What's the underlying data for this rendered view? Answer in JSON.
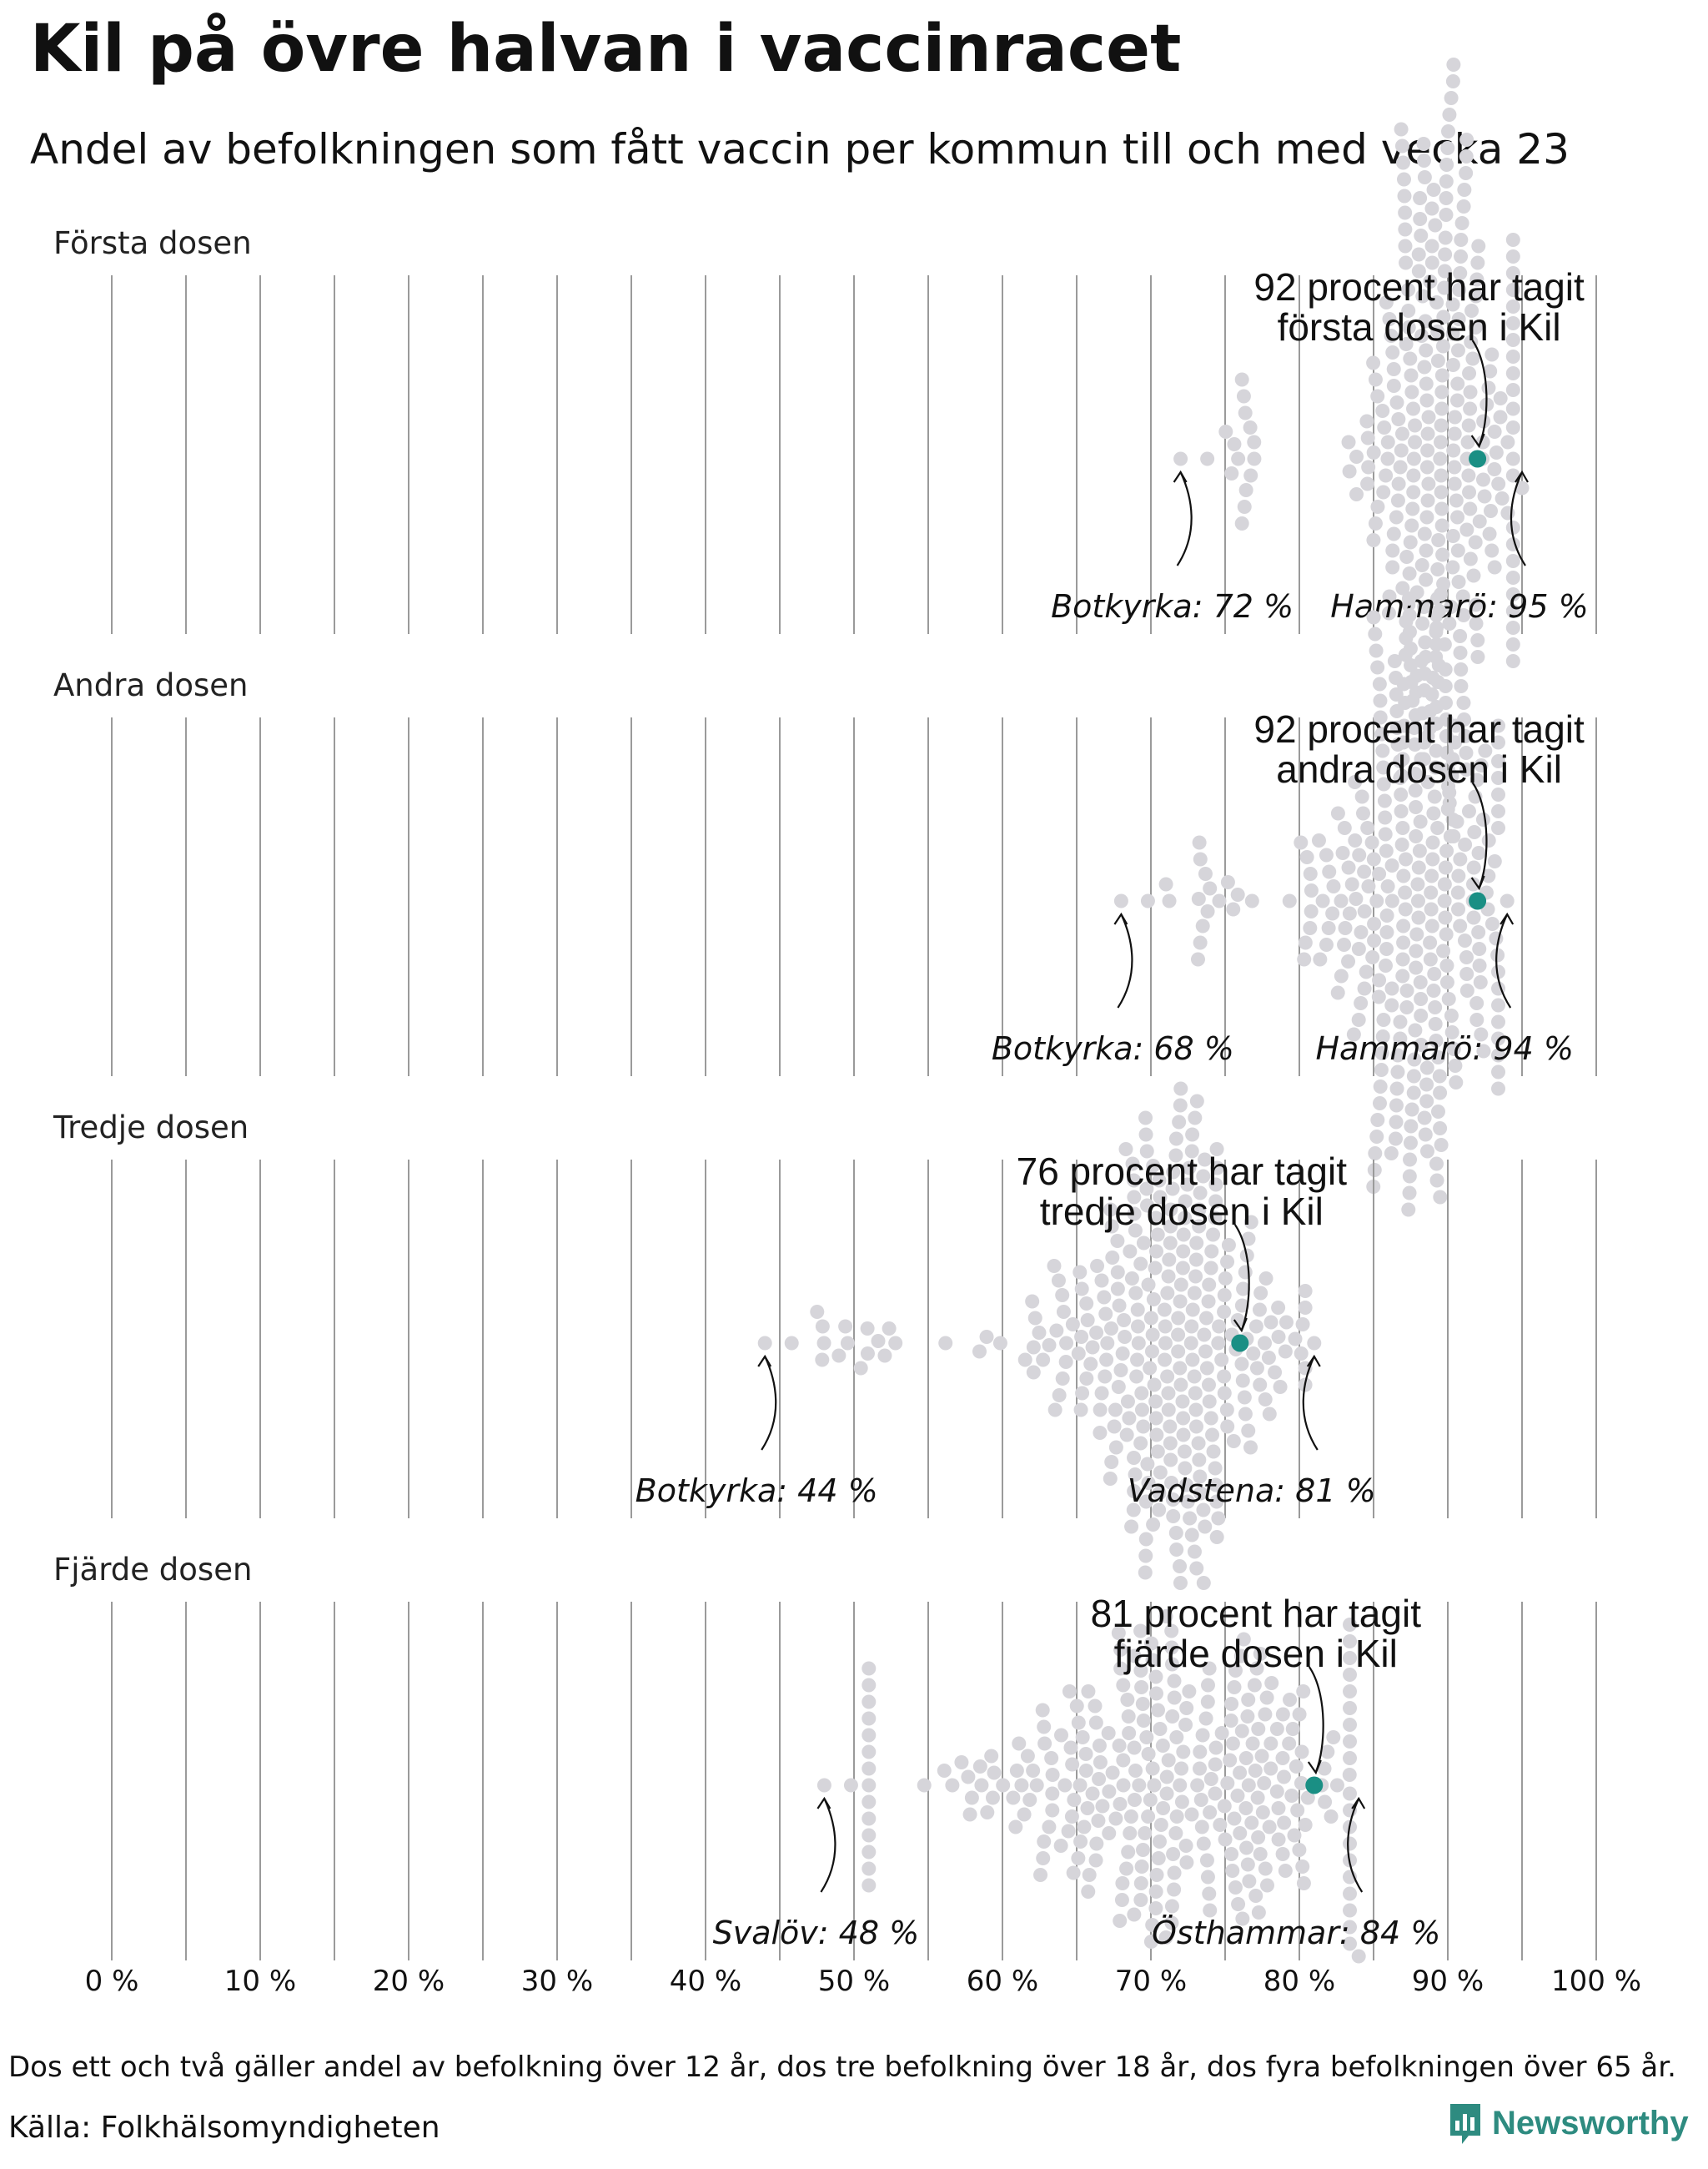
{
  "title": "Kil på övre halvan i vaccinracet",
  "subtitle": "Andel av befolkningen som fått vaccin per kommun till och med vecka 23",
  "footnote": "Dos ett och två gäller andel av befolkning över 12 år, dos tre befolkning över 18 år, dos fyra befolkningen över 65 år.",
  "source": "Källa: Folkhälsomyndigheten",
  "brand": "Newsworthy",
  "colors": {
    "municipality": "#d6d5da",
    "kil": "#1a8f84",
    "grid": "#9a9a9a"
  },
  "chart_data": {
    "type": "scatter",
    "subtype": "beeswarm",
    "xlim": [
      0,
      100
    ],
    "ticks": [
      "0 %",
      "10 %",
      "20 %",
      "30 %",
      "40 %",
      "50 %",
      "60 %",
      "70 %",
      "80 %",
      "90 %",
      "100 %"
    ],
    "grid": true,
    "unit": "%",
    "panels": [
      {
        "label": "Första dosen",
        "kil_value": 92,
        "kil_text": [
          "92 procent har tagit",
          "första dosen i Kil"
        ],
        "min": {
          "name": "Botkyrka",
          "value": 72,
          "label": "Botkyrka: 72 %"
        },
        "max": {
          "name": "Hammarö",
          "value": 95,
          "label": "Hammarö: 95 %"
        },
        "distribution": {
          "mode": 89.5,
          "spread": 3.0,
          "tail_from": 76,
          "range": [
            72,
            95
          ]
        }
      },
      {
        "label": "Andra dosen",
        "kil_value": 92,
        "kil_text": [
          "92 procent har tagit",
          "andra dosen i Kil"
        ],
        "min": {
          "name": "Botkyrka",
          "value": 68,
          "label": "Botkyrka: 68 %"
        },
        "max": {
          "name": "Hammarö",
          "value": 94,
          "label": "Hammarö: 94 %"
        },
        "distribution": {
          "mode": 88,
          "spread": 3.2,
          "tail_from": 75,
          "range": [
            68,
            94
          ]
        }
      },
      {
        "label": "Tredje dosen",
        "kil_value": 76,
        "kil_text": [
          "76 procent har tagit",
          "tredje dosen i Kil"
        ],
        "min": {
          "name": "Botkyrka",
          "value": 44,
          "label": "Botkyrka: 44 %"
        },
        "max": {
          "name": "Vadstena",
          "value": 81,
          "label": "Vadstena: 81 %"
        },
        "distribution": {
          "mode": 71,
          "spread": 4.5,
          "tail_from": 52,
          "range": [
            44,
            81
          ]
        }
      },
      {
        "label": "Fjärde dosen",
        "kil_value": 81,
        "kil_text": [
          "81 procent har tagit",
          "fjärde dosen i Kil"
        ],
        "min": {
          "name": "Svalöv",
          "value": 48,
          "label": "Svalöv: 48 %"
        },
        "max": {
          "name": "Östhammar",
          "value": 84,
          "label": "Östhammar: 84 %"
        },
        "distribution": {
          "mode": 72,
          "spread": 7.0,
          "tail_from": 50,
          "range": [
            48,
            84
          ]
        }
      }
    ]
  }
}
